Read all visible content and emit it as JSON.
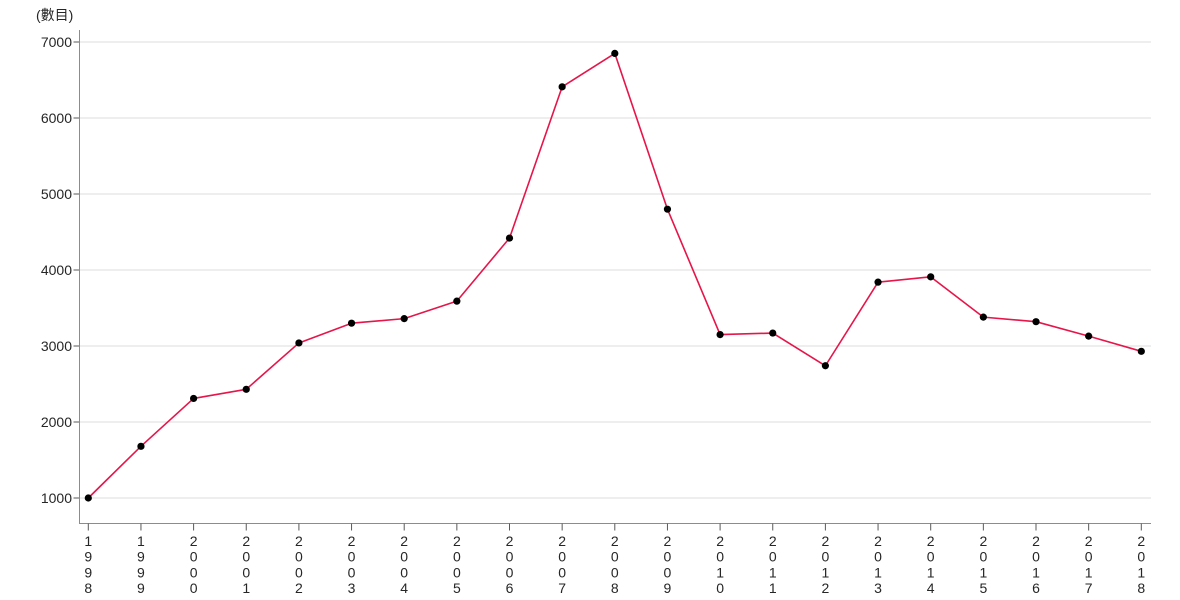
{
  "chart_data": {
    "type": "line",
    "title": "",
    "ylabel": "(數目)",
    "xlabel": "",
    "categories": [
      "1998",
      "1999",
      "2000",
      "2001",
      "2002",
      "2003",
      "2004",
      "2005",
      "2006",
      "2007",
      "2008",
      "2009",
      "2010",
      "2011",
      "2012",
      "2013",
      "2014",
      "2015",
      "2016",
      "2017",
      "2018"
    ],
    "series": [
      {
        "name": "數目",
        "values": [
          1000,
          1680,
          2310,
          2430,
          3040,
          3300,
          3360,
          3590,
          4420,
          6410,
          6850,
          4800,
          3150,
          3170,
          2740,
          3840,
          3910,
          3380,
          3320,
          3130,
          2930
        ]
      }
    ],
    "yticks": [
      1000,
      2000,
      3000,
      4000,
      5000,
      6000,
      7000
    ],
    "ylim": [
      1000,
      7000
    ],
    "grid": true,
    "legend": "none",
    "line_color": "#e6154a",
    "marker_color": "#000000",
    "grid_color": "#dcdcdc",
    "axis_color": "#8c8c8c",
    "tick_color": "#595959",
    "label_color": "#262626"
  }
}
